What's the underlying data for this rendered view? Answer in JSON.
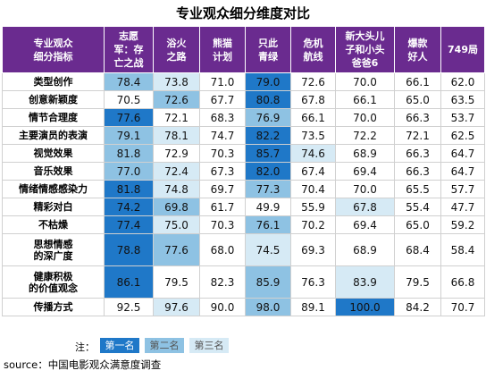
{
  "title": "专业观众细分维度对比",
  "legend": {
    "note": "注：",
    "first": "第一名",
    "second": "第二名",
    "third": "第三名"
  },
  "source": "source：中国电影观众满意度调查",
  "colors": {
    "header": "#6a2b8f",
    "rank_1": "#1f78c8",
    "rank_2": "#8ec2e3",
    "rank_3": "#d6eaf5"
  },
  "chart_data": {
    "type": "table",
    "title": "专业观众细分维度对比",
    "corner_header": [
      "专业观众",
      "细分指标"
    ],
    "columns": [
      [
        "志愿",
        "军：存",
        "亡之战"
      ],
      [
        "浴火",
        "之路"
      ],
      [
        "熊猫",
        "计划"
      ],
      [
        "只此",
        "青绿"
      ],
      [
        "危机",
        "航线"
      ],
      [
        "新大头儿",
        "子和小头",
        "爸爸6"
      ],
      [
        "爆款",
        "好人"
      ],
      [
        "749局"
      ]
    ],
    "rows": [
      {
        "label": [
          "类型创作"
        ],
        "values": [
          78.4,
          73.8,
          71.0,
          79.0,
          72.6,
          70.0,
          66.1,
          62.0
        ],
        "ranks": [
          2,
          3,
          0,
          1,
          0,
          0,
          0,
          0
        ]
      },
      {
        "label": [
          "创意新颖度"
        ],
        "values": [
          70.5,
          72.6,
          67.7,
          80.8,
          67.8,
          66.1,
          65.0,
          63.5
        ],
        "ranks": [
          0,
          2,
          0,
          1,
          0,
          0,
          0,
          0
        ]
      },
      {
        "label": [
          "情节合理度"
        ],
        "values": [
          77.6,
          72.1,
          68.3,
          76.9,
          66.1,
          70.0,
          66.3,
          53.7
        ],
        "ranks": [
          1,
          0,
          0,
          2,
          0,
          0,
          0,
          0
        ]
      },
      {
        "label": [
          "主要演员的表演"
        ],
        "values": [
          79.1,
          78.1,
          74.7,
          82.2,
          73.5,
          72.2,
          72.1,
          62.5
        ],
        "ranks": [
          2,
          3,
          0,
          1,
          0,
          0,
          0,
          0
        ]
      },
      {
        "label": [
          "视觉效果"
        ],
        "values": [
          81.8,
          72.9,
          70.3,
          85.7,
          74.6,
          68.9,
          66.3,
          64.7
        ],
        "ranks": [
          2,
          0,
          0,
          1,
          3,
          0,
          0,
          0
        ]
      },
      {
        "label": [
          "音乐效果"
        ],
        "values": [
          77.0,
          72.4,
          67.3,
          82.0,
          67.4,
          69.4,
          66.3,
          64.7
        ],
        "ranks": [
          2,
          3,
          0,
          1,
          0,
          0,
          0,
          0
        ]
      },
      {
        "label": [
          "情绪情感感染力"
        ],
        "values": [
          81.8,
          74.8,
          69.7,
          77.3,
          70.4,
          70.0,
          65.5,
          57.7
        ],
        "ranks": [
          1,
          3,
          0,
          2,
          0,
          0,
          0,
          0
        ]
      },
      {
        "label": [
          "精彩对白"
        ],
        "values": [
          74.2,
          69.8,
          61.7,
          49.9,
          55.9,
          67.8,
          55.4,
          47.7
        ],
        "ranks": [
          1,
          2,
          0,
          0,
          0,
          3,
          0,
          0
        ]
      },
      {
        "label": [
          "不枯燥"
        ],
        "values": [
          77.4,
          75.0,
          70.3,
          76.1,
          70.2,
          69.4,
          65.0,
          59.2
        ],
        "ranks": [
          1,
          3,
          0,
          2,
          0,
          0,
          0,
          0
        ]
      },
      {
        "label": [
          "思想情感",
          "的深广度"
        ],
        "values": [
          78.8,
          77.6,
          68.0,
          74.5,
          69.3,
          68.9,
          68.4,
          58.4
        ],
        "ranks": [
          1,
          2,
          0,
          3,
          0,
          0,
          0,
          0
        ]
      },
      {
        "label": [
          "健康积极",
          "的价值观念"
        ],
        "values": [
          86.1,
          79.5,
          82.3,
          85.9,
          76.3,
          83.9,
          79.5,
          66.8
        ],
        "ranks": [
          1,
          0,
          0,
          2,
          0,
          3,
          0,
          0
        ]
      },
      {
        "label": [
          "传播方式"
        ],
        "values": [
          92.5,
          97.6,
          90.0,
          98.0,
          89.1,
          100.0,
          84.2,
          70.7
        ],
        "ranks": [
          0,
          3,
          0,
          2,
          0,
          1,
          0,
          0
        ]
      }
    ]
  }
}
